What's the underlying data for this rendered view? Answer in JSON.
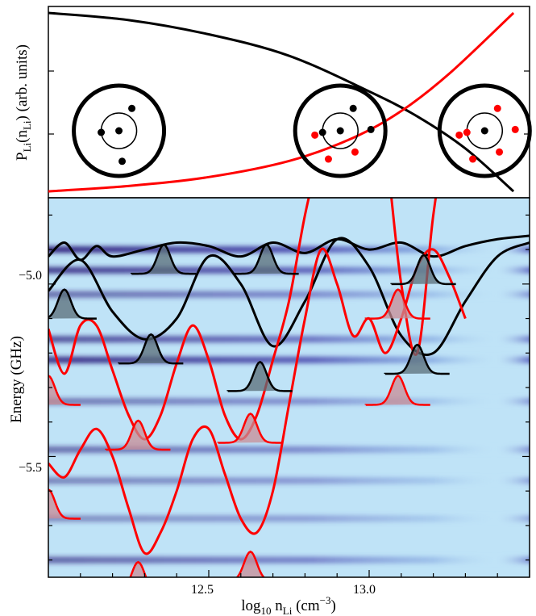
{
  "chart_data": [
    {
      "type": "line",
      "ylabel_main": "P",
      "ylabel_sub1": "Li",
      "ylabel_mid": "(n",
      "ylabel_sub2": "Li",
      "ylabel_tail": ") (arb. units)",
      "series": [
        {
          "color": "#000000",
          "x": [
            12.0,
            12.25,
            12.5,
            12.75,
            13.0,
            13.15,
            13.3,
            13.45
          ],
          "y": [
            1.0,
            0.96,
            0.88,
            0.76,
            0.56,
            0.42,
            0.24,
            0.0
          ]
        },
        {
          "color": "#ff0000",
          "x": [
            12.0,
            12.25,
            12.5,
            12.75,
            12.95,
            13.1,
            13.25,
            13.45
          ],
          "y": [
            0.0,
            0.03,
            0.08,
            0.17,
            0.3,
            0.45,
            0.66,
            1.0
          ]
        }
      ],
      "atoms": [
        {
          "x": 12.22,
          "electrons": [
            {
              "color": "#000000"
            },
            {
              "color": "#000000"
            },
            {
              "color": "#000000"
            }
          ]
        },
        {
          "x": 12.91,
          "electrons": [
            {
              "color": "#000000"
            },
            {
              "color": "#000000"
            },
            {
              "color": "#000000"
            },
            {
              "color": "#ff0000"
            },
            {
              "color": "#ff0000"
            },
            {
              "color": "#ff0000"
            }
          ]
        },
        {
          "x": 13.36,
          "electrons": [
            {
              "color": "#ff0000"
            },
            {
              "color": "#ff0000"
            },
            {
              "color": "#ff0000"
            },
            {
              "color": "#ff0000"
            },
            {
              "color": "#ff0000"
            },
            {
              "color": "#ff0000"
            }
          ]
        }
      ]
    },
    {
      "type": "heatmap",
      "xlabel_main": "log",
      "xlabel_sub1": "10",
      "xlabel_n": " n",
      "xlabel_sub2": "Li",
      "xlabel_unit": " (cm",
      "xlabel_sup": "−3",
      "xlabel_close": ")",
      "ylabel": "Energy (GHz)",
      "xlim": [
        12.0,
        13.5
      ],
      "ylim": [
        -5.85,
        -4.75
      ],
      "xticks": [
        12.5,
        13.0
      ],
      "xtick_labels": [
        "12.5",
        "13.0"
      ],
      "yticks": [
        -5.0,
        -5.5
      ],
      "ytick_labels": [
        "−5.0",
        "−5.5"
      ],
      "background_color": "#bfe3f7",
      "band_color": "#3a2a8c",
      "bands": [
        {
          "energy": -4.9,
          "strength": 0.95
        },
        {
          "energy": -4.96,
          "strength": 0.85
        },
        {
          "energy": -5.03,
          "strength": 0.6
        },
        {
          "energy": -5.16,
          "strength": 0.75
        },
        {
          "energy": -5.22,
          "strength": 0.9
        },
        {
          "energy": -5.34,
          "strength": 0.55
        },
        {
          "energy": -5.48,
          "strength": 0.6
        },
        {
          "energy": -5.57,
          "strength": 0.5
        },
        {
          "energy": -5.68,
          "strength": 0.45
        },
        {
          "energy": -5.8,
          "strength": 0.65
        }
      ],
      "potentials": [
        {
          "color": "#000000",
          "x": [
            12.0,
            12.05,
            12.1,
            12.15,
            12.2,
            12.3,
            12.4,
            12.5,
            12.6,
            12.7,
            12.8,
            12.9,
            13.0,
            13.1,
            13.2,
            13.3,
            13.4,
            13.5
          ],
          "y": [
            -4.92,
            -4.88,
            -4.93,
            -4.89,
            -4.92,
            -4.9,
            -4.88,
            -4.89,
            -4.92,
            -4.88,
            -4.91,
            -4.87,
            -4.9,
            -4.88,
            -4.92,
            -4.89,
            -4.87,
            -4.86
          ]
        },
        {
          "color": "#000000",
          "x": [
            12.0,
            12.1,
            12.2,
            12.3,
            12.4,
            12.5,
            12.6,
            12.7,
            12.8,
            12.9,
            13.0,
            13.1,
            13.2,
            13.3,
            13.4,
            13.5
          ],
          "y": [
            -5.02,
            -4.93,
            -5.08,
            -5.16,
            -5.1,
            -4.92,
            -5.0,
            -5.18,
            -5.05,
            -4.87,
            -4.95,
            -5.15,
            -5.2,
            -5.05,
            -4.92,
            -4.88
          ]
        },
        {
          "color": "#ff0000",
          "x": [
            12.0,
            12.05,
            12.1,
            12.15,
            12.2,
            12.25,
            12.3,
            12.35,
            12.4,
            12.45,
            12.5,
            12.55,
            12.6,
            12.65,
            12.7,
            12.75,
            12.8,
            12.85,
            12.9,
            12.95,
            13.0,
            13.05,
            13.1,
            13.15,
            13.2,
            13.25
          ],
          "y": [
            -5.13,
            -5.26,
            -5.12,
            -5.12,
            -5.25,
            -5.38,
            -5.45,
            -5.38,
            -5.23,
            -5.12,
            -5.22,
            -5.38,
            -5.45,
            -5.38,
            -5.22,
            -5.05,
            -4.8,
            -4.6,
            -4.4,
            -4.3,
            -4.4,
            -4.6,
            -5.0,
            -5.2,
            -4.8,
            -4.5
          ]
        },
        {
          "color": "#ff0000",
          "x": [
            12.0,
            12.05,
            12.1,
            12.15,
            12.2,
            12.25,
            12.3,
            12.35,
            12.4,
            12.45,
            12.5,
            12.55,
            12.6,
            12.65,
            12.7,
            12.75,
            12.8,
            12.85,
            12.9,
            12.95,
            13.0,
            13.05,
            13.1,
            13.15,
            13.2,
            13.25,
            13.3
          ],
          "y": [
            -5.52,
            -5.56,
            -5.48,
            -5.42,
            -5.5,
            -5.65,
            -5.78,
            -5.72,
            -5.6,
            -5.45,
            -5.42,
            -5.55,
            -5.68,
            -5.72,
            -5.6,
            -5.35,
            -5.1,
            -4.9,
            -5.0,
            -5.15,
            -5.1,
            -5.2,
            -5.1,
            -4.95,
            -4.9,
            -4.98,
            -5.1
          ]
        }
      ],
      "wavepackets": [
        {
          "color": "#000000",
          "x": 12.36,
          "energy": -4.9
        },
        {
          "color": "#000000",
          "x": 12.68,
          "energy": -4.9
        },
        {
          "color": "#000000",
          "x": 13.17,
          "energy": -4.93
        },
        {
          "color": "#000000",
          "x": 12.05,
          "energy": -5.03
        },
        {
          "color": "#000000",
          "x": 12.32,
          "energy": -5.16
        },
        {
          "color": "#000000",
          "x": 12.66,
          "energy": -5.24
        },
        {
          "color": "#000000",
          "x": 13.15,
          "energy": -5.19
        },
        {
          "color": "#ff0000",
          "x": 13.09,
          "energy": -5.03
        },
        {
          "color": "#ff0000",
          "x": 12.0,
          "energy": -5.28
        },
        {
          "color": "#ff0000",
          "x": 13.09,
          "energy": -5.28
        },
        {
          "color": "#ff0000",
          "x": 12.28,
          "energy": -5.41
        },
        {
          "color": "#ff0000",
          "x": 12.63,
          "energy": -5.39
        },
        {
          "color": "#ff0000",
          "x": 12.0,
          "energy": -5.61
        },
        {
          "color": "#ff0000",
          "x": 12.28,
          "energy": -5.82
        },
        {
          "color": "#ff0000",
          "x": 12.63,
          "energy": -5.79
        }
      ]
    }
  ]
}
